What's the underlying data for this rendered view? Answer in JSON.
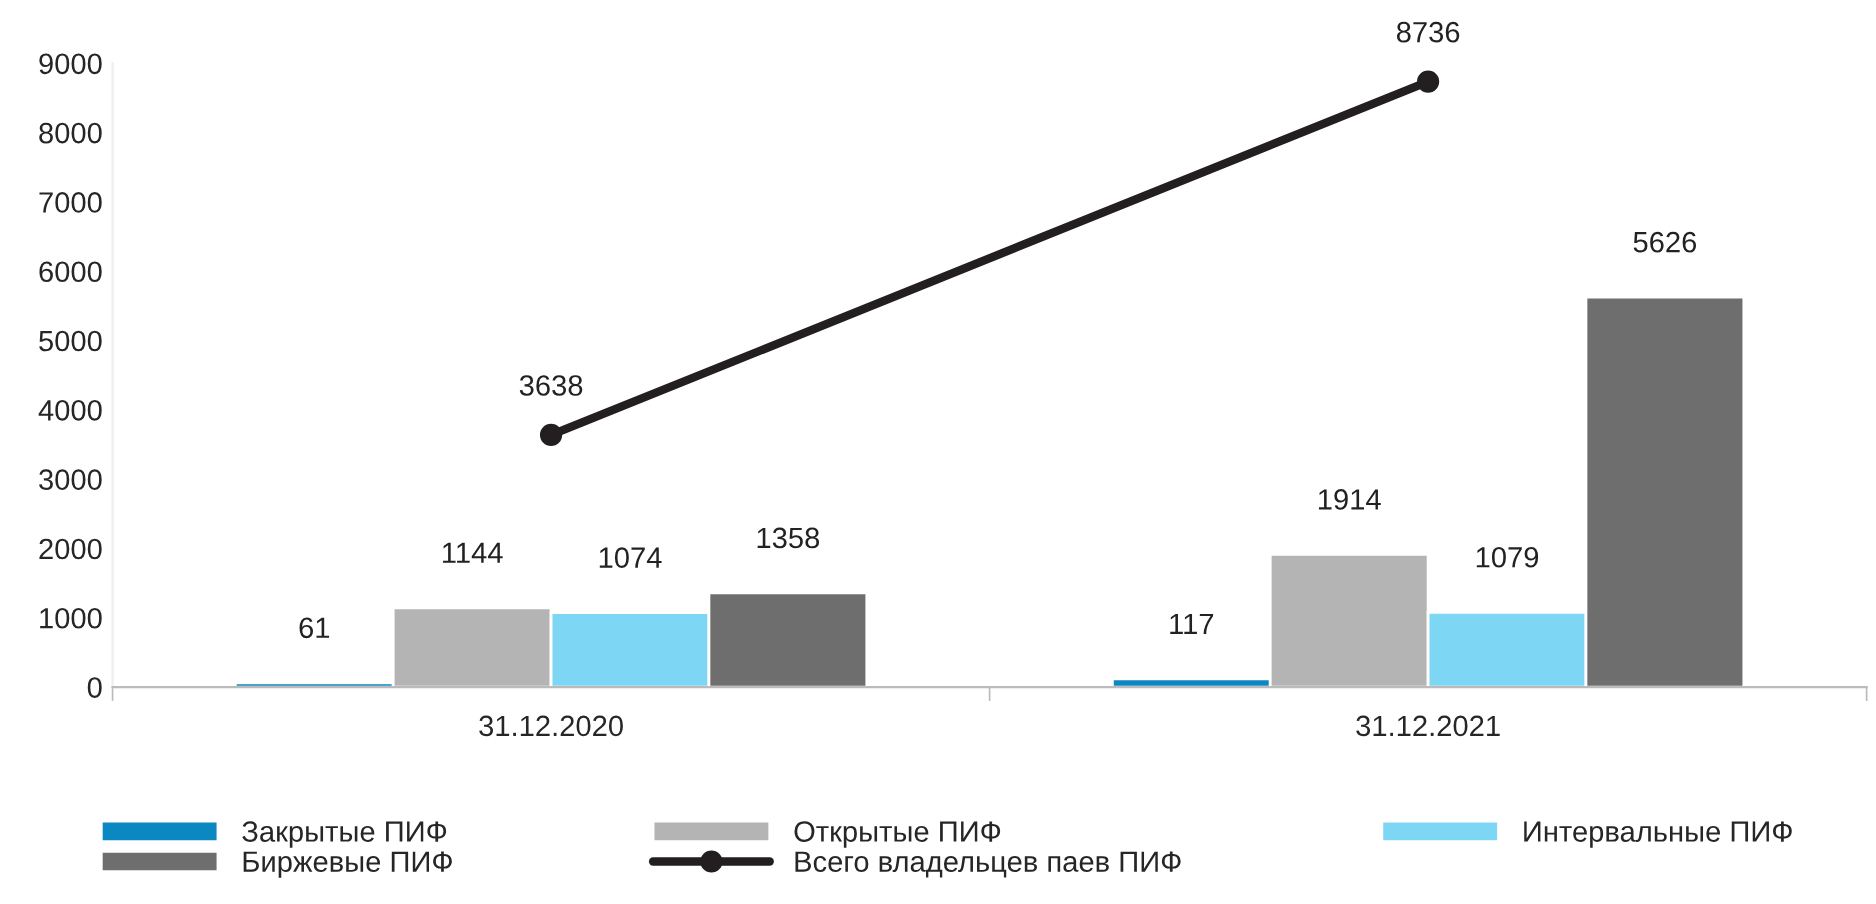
{
  "chart_data": {
    "type": "bar",
    "categories": [
      "31.12.2020",
      "31.12.2021"
    ],
    "series": [
      {
        "name": "Закрытые ПИФ",
        "color": "#0b87c1",
        "values": [
          61,
          117
        ]
      },
      {
        "name": "Открытые ПИФ",
        "color": "#b4b4b4",
        "values": [
          1144,
          1914
        ]
      },
      {
        "name": "Интервальные ПИФ",
        "color": "#7dd6f4",
        "values": [
          1074,
          1079
        ]
      },
      {
        "name": "Биржевые ПИФ",
        "color": "#6d6e6d",
        "values": [
          1358,
          5626
        ]
      },
      {
        "name": "Всего владельцев паев ПИФ",
        "type": "line",
        "color": "#231f20",
        "values": [
          3638,
          8736
        ],
        "marker": "circle"
      }
    ],
    "ylim": [
      0,
      9000
    ],
    "yticks": [
      0,
      1000,
      2000,
      3000,
      4000,
      5000,
      6000,
      7000,
      8000,
      9000
    ],
    "data_labels": true,
    "legend": "bottom",
    "grid": false
  }
}
